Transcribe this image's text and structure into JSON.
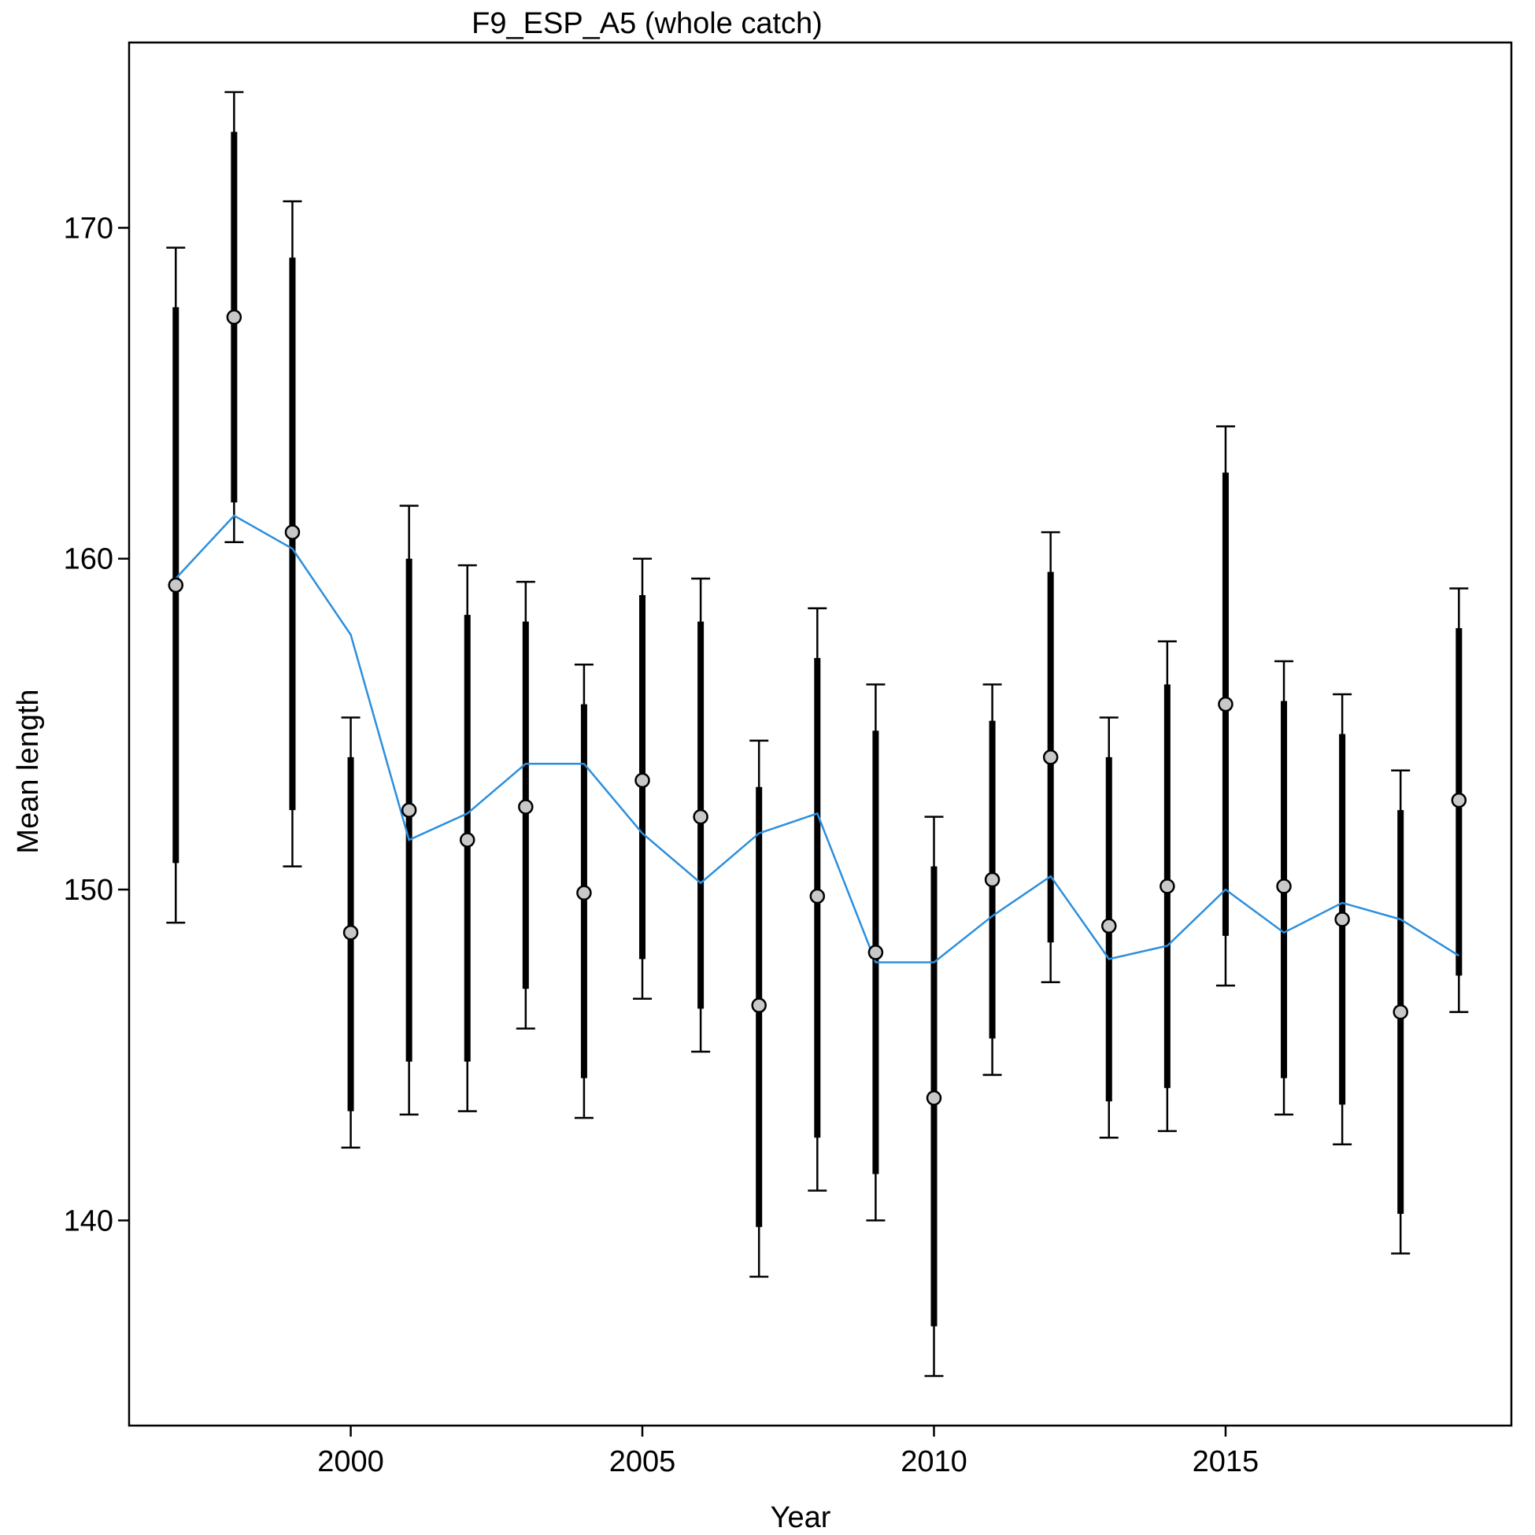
{
  "chart_data": {
    "type": "scatter",
    "title": "F9_ESP_A5 (whole catch)",
    "xlabel": "Year",
    "ylabel": "Mean length",
    "xlim": [
      1996.2,
      2019.9
    ],
    "ylim": [
      133.8,
      175.6
    ],
    "x_ticks": [
      2000,
      2005,
      2010,
      2015
    ],
    "y_ticks": [
      140,
      150,
      160,
      170
    ],
    "grid": false,
    "legend": "none",
    "colors": {
      "observed": "#c8c8c8",
      "expected": "#2b8fde",
      "error_bars": "#000000"
    },
    "x": [
      1997,
      1998,
      1999,
      2000,
      2001,
      2002,
      2003,
      2004,
      2005,
      2006,
      2007,
      2008,
      2009,
      2010,
      2011,
      2012,
      2013,
      2014,
      2015,
      2016,
      2017,
      2018,
      2019
    ],
    "series": [
      {
        "role": "observed",
        "values": [
          159.2,
          167.3,
          160.8,
          148.7,
          152.4,
          151.5,
          152.5,
          149.9,
          153.3,
          152.2,
          146.5,
          149.8,
          148.1,
          143.7,
          150.3,
          154.0,
          148.9,
          150.1,
          155.6,
          150.1,
          149.1,
          146.3,
          152.7
        ],
        "inner_low": [
          150.8,
          161.7,
          152.4,
          143.3,
          144.8,
          144.8,
          147.0,
          144.3,
          147.9,
          146.4,
          139.8,
          142.5,
          141.4,
          136.8,
          145.5,
          148.4,
          143.6,
          144.0,
          148.6,
          144.3,
          143.5,
          140.2,
          147.4
        ],
        "inner_high": [
          167.6,
          172.9,
          169.1,
          154.0,
          160.0,
          158.3,
          158.1,
          155.6,
          158.9,
          158.1,
          153.1,
          157.0,
          154.8,
          150.7,
          155.1,
          159.6,
          154.0,
          156.2,
          162.6,
          155.7,
          154.7,
          152.4,
          157.9
        ],
        "outer_low": [
          149.0,
          160.5,
          150.7,
          142.2,
          143.2,
          143.3,
          145.8,
          143.1,
          146.7,
          145.1,
          138.3,
          140.9,
          140.0,
          135.3,
          144.4,
          147.2,
          142.5,
          142.7,
          147.1,
          143.2,
          142.3,
          139.0,
          146.3
        ],
        "outer_high": [
          169.4,
          174.1,
          170.8,
          155.2,
          161.6,
          159.8,
          159.3,
          156.8,
          160.0,
          159.4,
          154.5,
          158.5,
          156.2,
          152.2,
          156.2,
          160.8,
          155.2,
          157.5,
          164.0,
          156.9,
          155.9,
          153.6,
          159.1
        ]
      },
      {
        "role": "expected",
        "values": [
          159.4,
          161.3,
          160.3,
          157.7,
          151.5,
          152.3,
          153.8,
          153.8,
          151.7,
          150.2,
          151.7,
          152.3,
          147.8,
          147.8,
          149.2,
          150.4,
          147.9,
          148.3,
          150.0,
          148.7,
          149.6,
          149.1,
          148.0
        ]
      }
    ]
  }
}
